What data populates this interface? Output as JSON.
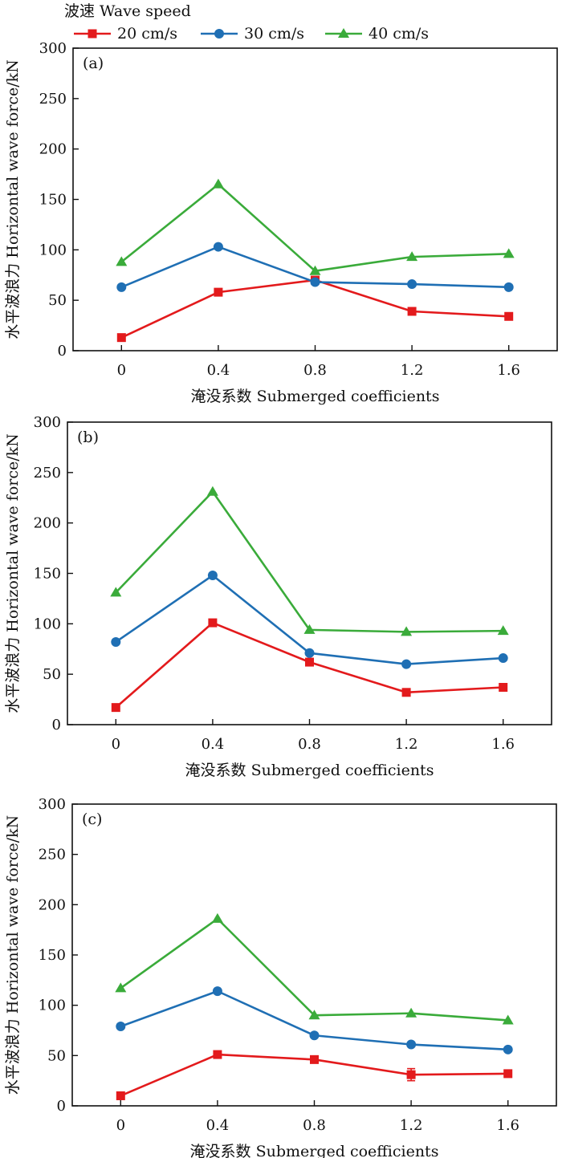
{
  "legend": {
    "title": "波速 Wave speed",
    "position": "top-left"
  },
  "series_style": [
    {
      "name": "20 cm/s",
      "color": "#e31a1c",
      "marker": "square"
    },
    {
      "name": "30 cm/s",
      "color": "#1f6fb4",
      "marker": "circle"
    },
    {
      "name": "40 cm/s",
      "color": "#3aab3a",
      "marker": "triangle"
    }
  ],
  "chart_data": [
    {
      "type": "line",
      "panel_label": "(a)",
      "x": [
        0,
        0.4,
        0.8,
        1.2,
        1.6
      ],
      "x_tick_labels": [
        "0",
        "0.4",
        "0.8",
        "1.2",
        "1.6"
      ],
      "xlim": [
        -0.2,
        1.8
      ],
      "ylim": [
        0,
        300
      ],
      "y_ticks": [
        0,
        50,
        100,
        150,
        200,
        250,
        300
      ],
      "xlabel": "淹没系数 Submerged coefficients",
      "ylabel": "水平波浪力 Horizontal wave force/kN",
      "series": [
        {
          "name": "20 cm/s",
          "values": [
            13,
            58,
            70,
            39,
            34
          ]
        },
        {
          "name": "30 cm/s",
          "values": [
            63,
            103,
            68,
            66,
            63
          ]
        },
        {
          "name": "40 cm/s",
          "values": [
            88,
            165,
            79,
            93,
            96
          ]
        }
      ]
    },
    {
      "type": "line",
      "panel_label": "(b)",
      "x": [
        0,
        0.4,
        0.8,
        1.2,
        1.6
      ],
      "x_tick_labels": [
        "0",
        "0.4",
        "0.8",
        "1.2",
        "1.6"
      ],
      "xlim": [
        -0.2,
        1.8
      ],
      "ylim": [
        0,
        300
      ],
      "y_ticks": [
        0,
        50,
        100,
        150,
        200,
        250,
        300
      ],
      "xlabel": "淹没系数 Submerged coefficients",
      "ylabel": "水平波浪力 Horizontal wave force/kN",
      "series": [
        {
          "name": "20 cm/s",
          "values": [
            17,
            101,
            62,
            32,
            37
          ]
        },
        {
          "name": "30 cm/s",
          "values": [
            82,
            148,
            71,
            60,
            66
          ]
        },
        {
          "name": "40 cm/s",
          "values": [
            131,
            231,
            94,
            92,
            93
          ]
        }
      ]
    },
    {
      "type": "line",
      "panel_label": "(c)",
      "x": [
        0,
        0.4,
        0.8,
        1.2,
        1.6
      ],
      "x_tick_labels": [
        "0",
        "0.4",
        "0.8",
        "1.2",
        "1.6"
      ],
      "xlim": [
        -0.2,
        1.8
      ],
      "ylim": [
        0,
        300
      ],
      "y_ticks": [
        0,
        50,
        100,
        150,
        200,
        250,
        300
      ],
      "xlabel": "淹没系数 Submerged coefficients",
      "ylabel": "水平波浪力 Horizontal wave force/kN",
      "series": [
        {
          "name": "20 cm/s",
          "values": [
            10,
            51,
            46,
            31,
            32
          ],
          "errors": [
            2,
            3,
            3,
            6,
            3
          ]
        },
        {
          "name": "30 cm/s",
          "values": [
            79,
            114,
            70,
            61,
            56
          ]
        },
        {
          "name": "40 cm/s",
          "values": [
            117,
            186,
            90,
            92,
            85
          ]
        }
      ]
    }
  ]
}
